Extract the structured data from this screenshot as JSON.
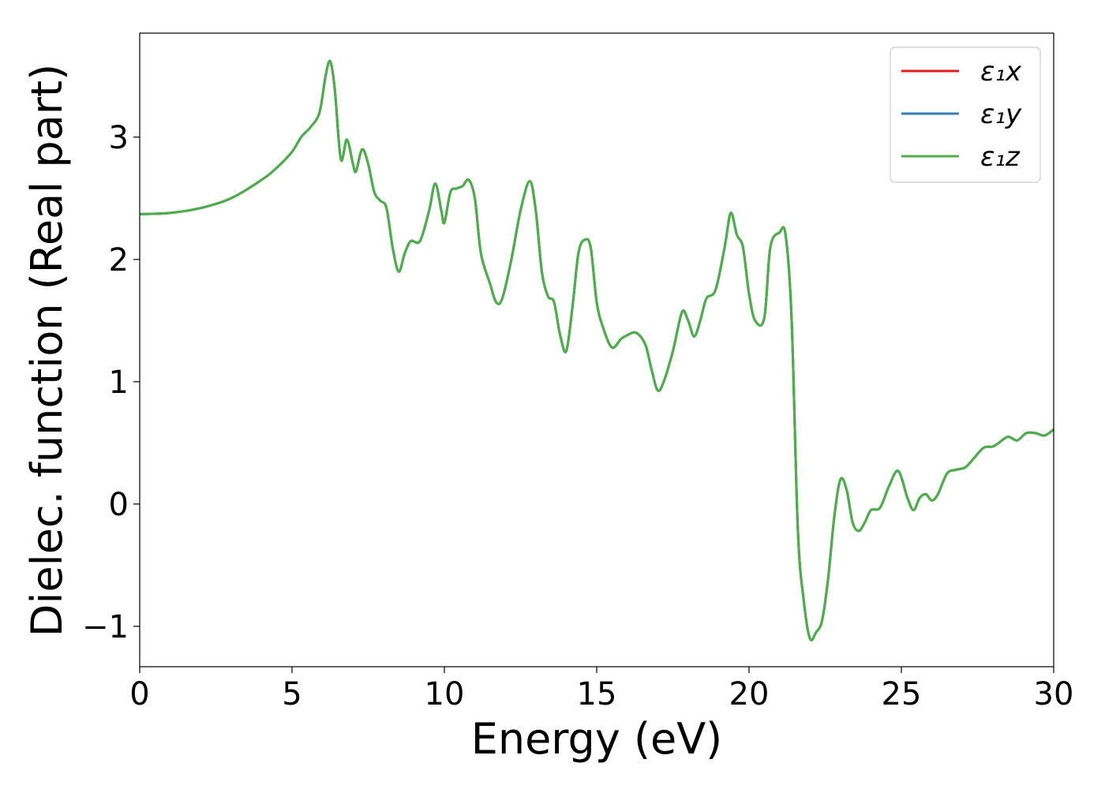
{
  "chart_data": {
    "type": "line",
    "title": "",
    "xlabel": "Energy (eV)",
    "ylabel": "Dielec. function (Real part)",
    "xlim": [
      0,
      30
    ],
    "ylim": [
      -1.33,
      3.85
    ],
    "x_ticks": [
      0,
      5,
      10,
      15,
      20,
      25,
      30
    ],
    "x_tick_labels": [
      "0",
      "5",
      "10",
      "15",
      "20",
      "25",
      "30"
    ],
    "y_ticks": [
      -1,
      0,
      1,
      2,
      3
    ],
    "y_tick_labels": [
      "−1",
      "0",
      "1",
      "2",
      "3"
    ],
    "grid": false,
    "legend_position": "top-right",
    "series": [
      {
        "name": "ε₁x",
        "color": "#e41a1c"
      },
      {
        "name": "ε₁y",
        "color": "#377eb8"
      },
      {
        "name": "ε₁z",
        "color": "#4daf4a"
      }
    ],
    "x": [
      0,
      1,
      2,
      3,
      4,
      4.5,
      5,
      5.3,
      5.6,
      5.9,
      6.1,
      6.25,
      6.4,
      6.6,
      6.8,
      7.0,
      7.1,
      7.3,
      7.5,
      7.7,
      7.9,
      8.1,
      8.3,
      8.5,
      8.7,
      8.9,
      9.2,
      9.5,
      9.7,
      9.9,
      10.0,
      10.2,
      10.4,
      10.6,
      10.8,
      11.0,
      11.2,
      11.5,
      11.7,
      11.9,
      12.2,
      12.5,
      12.8,
      13.0,
      13.2,
      13.4,
      13.6,
      13.8,
      14.0,
      14.2,
      14.4,
      14.6,
      14.8,
      15.0,
      15.2,
      15.5,
      15.8,
      16.0,
      16.3,
      16.6,
      16.8,
      17.0,
      17.2,
      17.5,
      17.8,
      18.0,
      18.2,
      18.4,
      18.6,
      18.9,
      19.2,
      19.4,
      19.6,
      19.8,
      20.0,
      20.2,
      20.5,
      20.7,
      21.0,
      21.2,
      21.4,
      21.6,
      21.8,
      22.0,
      22.2,
      22.4,
      22.6,
      22.8,
      23.0,
      23.2,
      23.4,
      23.6,
      23.8,
      24.0,
      24.3,
      24.6,
      24.9,
      25.2,
      25.4,
      25.6,
      25.8,
      26.0,
      26.2,
      26.5,
      26.8,
      27.1,
      27.4,
      27.7,
      28.0,
      28.2,
      28.5,
      28.8,
      29.1,
      29.4,
      29.7,
      30.0
    ],
    "values": [
      2.37,
      2.38,
      2.42,
      2.5,
      2.65,
      2.75,
      2.88,
      3.0,
      3.08,
      3.2,
      3.5,
      3.62,
      3.4,
      2.82,
      2.98,
      2.78,
      2.72,
      2.9,
      2.78,
      2.55,
      2.48,
      2.42,
      2.1,
      1.9,
      2.05,
      2.15,
      2.15,
      2.4,
      2.62,
      2.4,
      2.3,
      2.55,
      2.58,
      2.6,
      2.65,
      2.5,
      2.05,
      1.8,
      1.65,
      1.68,
      2.0,
      2.4,
      2.64,
      2.4,
      1.9,
      1.7,
      1.65,
      1.38,
      1.25,
      1.6,
      2.05,
      2.16,
      2.1,
      1.65,
      1.45,
      1.28,
      1.35,
      1.38,
      1.4,
      1.3,
      1.1,
      0.93,
      1.0,
      1.25,
      1.57,
      1.5,
      1.37,
      1.5,
      1.68,
      1.75,
      2.1,
      2.38,
      2.2,
      2.1,
      1.72,
      1.5,
      1.52,
      2.1,
      2.22,
      2.2,
      1.5,
      -0.2,
      -0.8,
      -1.1,
      -1.05,
      -0.95,
      -0.6,
      -0.1,
      0.2,
      0.12,
      -0.15,
      -0.22,
      -0.15,
      -0.05,
      -0.03,
      0.15,
      0.27,
      0.05,
      -0.05,
      0.05,
      0.08,
      0.03,
      0.08,
      0.25,
      0.28,
      0.3,
      0.38,
      0.46,
      0.47,
      0.5,
      0.55,
      0.52,
      0.58,
      0.58,
      0.56,
      0.61
    ]
  }
}
